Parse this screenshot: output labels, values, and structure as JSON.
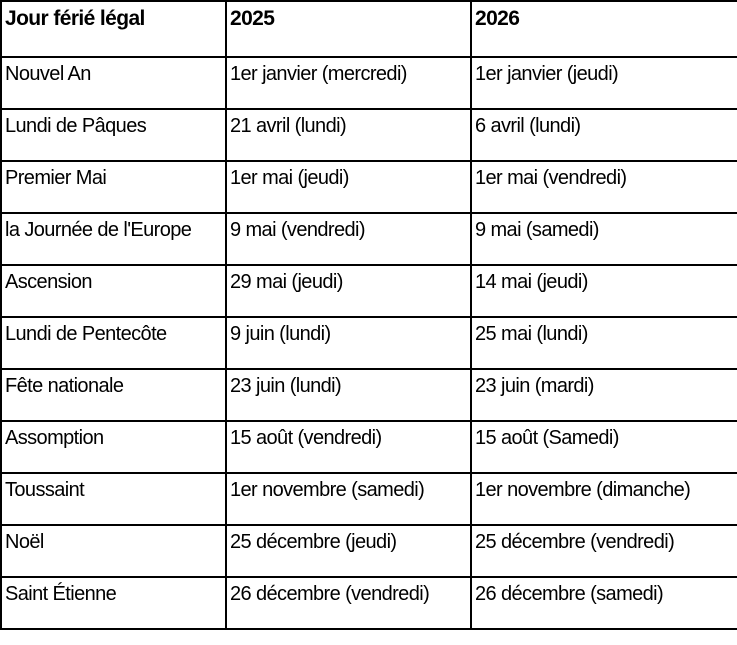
{
  "header": {
    "holiday": "Jour férié légal",
    "year1": "2025",
    "year2": "2026"
  },
  "rows": [
    {
      "holiday": "Nouvel An",
      "y2025": "1er janvier (mercredi)",
      "y2026": "1er janvier (jeudi)"
    },
    {
      "holiday": "Lundi de Pâques",
      "y2025": "21 avril (lundi)",
      "y2026": "6 avril (lundi)"
    },
    {
      "holiday": "Premier Mai",
      "y2025": "1er mai (jeudi)",
      "y2026": "1er mai (vendredi)"
    },
    {
      "holiday": "la Journée de l'Europe",
      "y2025": "9 mai (vendredi)",
      "y2026": "9 mai (samedi)"
    },
    {
      "holiday": "Ascension",
      "y2025": "29 mai (jeudi)",
      "y2026": "14 mai (jeudi)"
    },
    {
      "holiday": "Lundi de Pentecôte",
      "y2025": "9 juin (lundi)",
      "y2026": "25 mai (lundi)"
    },
    {
      "holiday": "Fête nationale",
      "y2025": "23 juin (lundi)",
      "y2026": "23 juin (mardi)"
    },
    {
      "holiday": "Assomption",
      "y2025": "15 août (vendredi)",
      "y2026": "15 août (Samedi)"
    },
    {
      "holiday": "Toussaint",
      "y2025": "1er novembre (samedi)",
      "y2026": "1er novembre (dimanche)"
    },
    {
      "holiday": "Noël",
      "y2025": "25 décembre (jeudi)",
      "y2026": "25 décembre (vendredi)"
    },
    {
      "holiday": "Saint Étienne",
      "y2025": "26 décembre (vendredi)",
      "y2026": "26 décembre (samedi)"
    }
  ],
  "colors": {
    "border": "#000000",
    "text": "#000000",
    "background": "#ffffff"
  }
}
